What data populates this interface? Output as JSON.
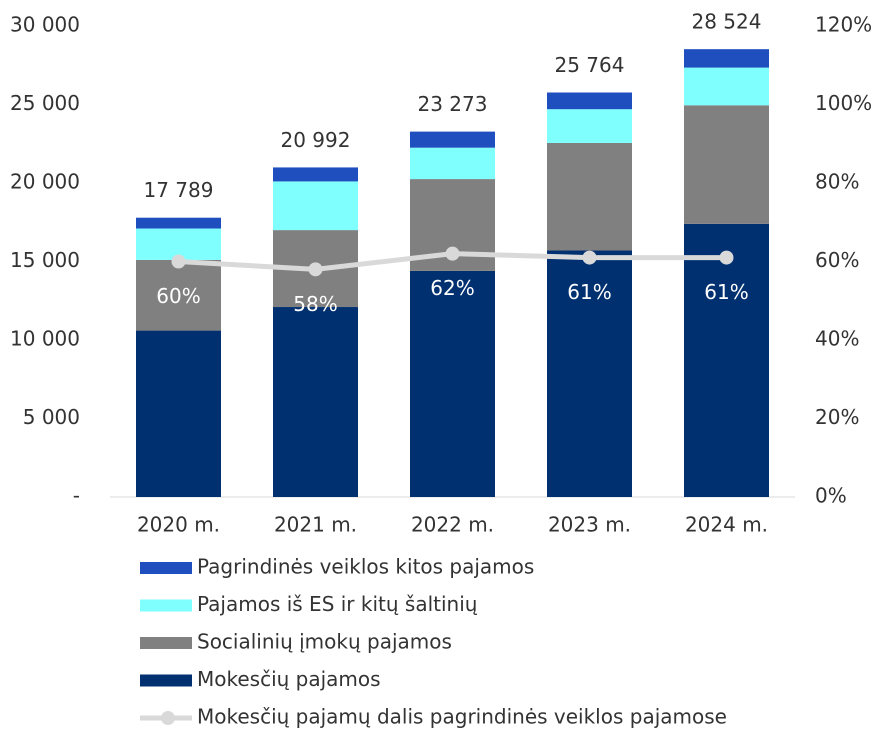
{
  "chart_data": {
    "type": "bar",
    "stacked": true,
    "categories": [
      "2020 m.",
      "2021 m.",
      "2022 m.",
      "2023 m.",
      "2024 m."
    ],
    "series": [
      {
        "name": "Mokesčių pajamos",
        "color": "#003070",
        "values": [
          10600,
          12100,
          14400,
          15700,
          17400
        ]
      },
      {
        "name": "Socialinių įmokų pajamos",
        "color": "#808080",
        "values": [
          4500,
          4900,
          5850,
          6850,
          7550
        ]
      },
      {
        "name": "Pajamos iš ES ir kitų šaltinių",
        "color": "#80ffff",
        "values": [
          2000,
          3100,
          2000,
          2150,
          2400
        ]
      },
      {
        "name": "Pagrindinės veiklos kitos pajamos",
        "color": "#1f4fbf",
        "values": [
          689,
          892,
          1023,
          1064,
          1174
        ]
      },
      {
        "name": "Mokesčių pajamų dalis pagrindinės veiklos pajamose",
        "type": "line",
        "axis": "y2",
        "color": "#d9d9d9",
        "values": [
          60,
          58,
          62,
          61,
          61
        ],
        "value_labels": [
          "60%",
          "58%",
          "62%",
          "61%",
          "61%"
        ]
      }
    ],
    "totals": [
      17789,
      20992,
      23273,
      25764,
      28524
    ],
    "total_labels": [
      "17 789",
      "20 992",
      "23 273",
      "25 764",
      "28 524"
    ],
    "ylim": [
      0,
      30000
    ],
    "yticks": [
      {
        "value": 0,
        "label": "-"
      },
      {
        "value": 5000,
        "label": "5 000"
      },
      {
        "value": 10000,
        "label": "10 000"
      },
      {
        "value": 15000,
        "label": "15 000"
      },
      {
        "value": 20000,
        "label": "20 000"
      },
      {
        "value": 25000,
        "label": "25 000"
      },
      {
        "value": 30000,
        "label": "30 000"
      }
    ],
    "y2lim": [
      0,
      120
    ],
    "y2ticks": [
      {
        "value": 0,
        "label": "0%"
      },
      {
        "value": 20,
        "label": "20%"
      },
      {
        "value": 40,
        "label": "40%"
      },
      {
        "value": 60,
        "label": "60%"
      },
      {
        "value": 80,
        "label": "80%"
      },
      {
        "value": 100,
        "label": "100%"
      },
      {
        "value": 120,
        "label": "120%"
      }
    ],
    "legend": "bottom"
  }
}
